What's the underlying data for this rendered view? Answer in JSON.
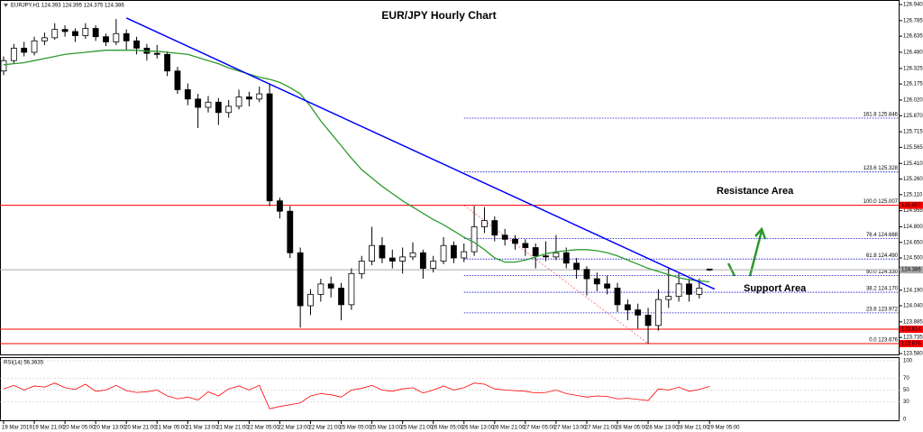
{
  "chart_data": {
    "type": "candlestick",
    "title": "EUR/JPY Hourly Chart",
    "header": "EURJPY,H1 124.393 124.395 124.375 124.386",
    "categories": [
      "19 Mar 2019",
      null,
      null,
      "19 Mar 21:00",
      null,
      null,
      "20 Mar 05:00",
      null,
      null,
      "20 Mar 13:00",
      null,
      null,
      "20 Mar 21:00",
      null,
      null,
      "21 Mar 05:00",
      null,
      null,
      "21 Mar 13:00",
      null,
      null,
      "21 Mar 21:00",
      null,
      null,
      "22 Mar 05:00",
      null,
      null,
      "22 Mar 13:00",
      null,
      null,
      "22 Mar 21:00",
      null,
      null,
      "25 Mar 05:00",
      null,
      null,
      "25 Mar 13:00",
      null,
      null,
      "25 Mar 21:00",
      null,
      null,
      "26 Mar 05:00",
      null,
      null,
      "26 Mar 13:00",
      null,
      null,
      "26 Mar 21:00",
      null,
      null,
      "27 Mar 05:00",
      null,
      null,
      "27 Mar 13:00",
      null,
      null,
      "27 Mar 21:00",
      null,
      null,
      "28 Mar 05:00",
      null,
      null,
      "28 Mar 13:00",
      null,
      null,
      "28 Mar 21:00",
      null,
      null,
      "29 Mar 05:00"
    ],
    "open": [
      126.3,
      126.4,
      126.52,
      126.48,
      126.59,
      126.62,
      126.7,
      126.68,
      126.64,
      126.71,
      126.63,
      126.58,
      126.66,
      126.59,
      126.52,
      126.47,
      126.46,
      126.3,
      126.12,
      126.03,
      125.95,
      126.0,
      125.9,
      125.96,
      126.05,
      126.03,
      126.08,
      125.05,
      124.95,
      124.55,
      124.04,
      124.15,
      124.25,
      124.21,
      124.05,
      124.35,
      124.47,
      124.62,
      124.5,
      124.47,
      124.51,
      124.55,
      124.4,
      124.47,
      124.62,
      124.5,
      124.56,
      124.8,
      124.86,
      124.72,
      124.68,
      124.64,
      124.6,
      124.52,
      124.51,
      124.55,
      124.45,
      124.39,
      124.3,
      124.25,
      124.21,
      124.05,
      124.0,
      123.95,
      123.85,
      124.1,
      124.13,
      124.25,
      124.15,
      124.393
    ],
    "high": [
      126.44,
      126.56,
      126.58,
      126.63,
      126.67,
      126.76,
      126.74,
      126.71,
      126.76,
      126.74,
      126.66,
      126.8,
      126.7,
      126.63,
      126.56,
      126.55,
      126.49,
      126.34,
      126.18,
      126.08,
      126.06,
      126.04,
      126.02,
      126.12,
      126.1,
      126.15,
      126.18,
      125.08,
      125.0,
      124.6,
      124.2,
      124.3,
      124.32,
      124.26,
      124.4,
      124.52,
      124.8,
      124.7,
      124.58,
      124.6,
      124.65,
      124.58,
      124.52,
      124.7,
      124.66,
      124.64,
      125.0,
      124.99,
      124.9,
      124.78,
      124.72,
      124.68,
      124.64,
      124.66,
      124.72,
      124.6,
      124.5,
      124.42,
      124.36,
      124.33,
      124.26,
      124.1,
      124.06,
      124.02,
      124.2,
      124.4,
      124.35,
      124.3,
      124.3,
      124.395
    ],
    "low": [
      126.26,
      126.37,
      126.44,
      126.45,
      126.55,
      126.6,
      126.63,
      126.58,
      126.61,
      126.59,
      126.54,
      126.55,
      126.5,
      126.46,
      126.4,
      126.42,
      126.25,
      126.08,
      125.97,
      125.75,
      125.9,
      125.78,
      125.85,
      125.93,
      125.96,
      126.0,
      125.0,
      124.88,
      124.5,
      123.83,
      123.95,
      124.08,
      124.12,
      123.9,
      124.0,
      124.3,
      124.43,
      124.45,
      124.4,
      124.35,
      124.48,
      124.3,
      124.36,
      124.44,
      124.45,
      124.46,
      124.52,
      124.74,
      124.66,
      124.62,
      124.58,
      124.52,
      124.4,
      124.47,
      124.48,
      124.4,
      124.3,
      124.14,
      124.18,
      124.15,
      123.98,
      123.9,
      123.82,
      123.676,
      123.8,
      124.02,
      124.08,
      124.08,
      124.11,
      124.375
    ],
    "close": [
      126.4,
      126.52,
      126.48,
      126.59,
      126.62,
      126.7,
      126.68,
      126.64,
      126.71,
      126.63,
      126.58,
      126.66,
      126.59,
      126.52,
      126.47,
      126.46,
      126.3,
      126.12,
      126.03,
      125.95,
      126.0,
      125.9,
      125.96,
      126.05,
      126.03,
      126.08,
      125.05,
      124.95,
      124.55,
      124.04,
      124.15,
      124.25,
      124.21,
      124.05,
      124.35,
      124.47,
      124.62,
      124.5,
      124.47,
      124.51,
      124.55,
      124.4,
      124.47,
      124.62,
      124.5,
      124.56,
      124.8,
      124.86,
      124.72,
      124.68,
      124.64,
      124.6,
      124.52,
      124.51,
      124.55,
      124.45,
      124.39,
      124.3,
      124.25,
      124.21,
      124.05,
      124.0,
      123.95,
      123.85,
      124.1,
      124.13,
      124.25,
      124.15,
      124.21,
      124.386
    ],
    "colors": {
      "up": "#ffffff",
      "down": "#000000",
      "outline": "#000000"
    },
    "ylim": [
      123.58,
      126.94
    ],
    "yticks": [
      {
        "value": 126.94,
        "label": "126.940"
      },
      {
        "value": 126.785,
        "label": "126.785"
      },
      {
        "value": 126.635,
        "label": "126.635"
      },
      {
        "value": 126.48,
        "label": "126.480"
      },
      {
        "value": 126.325,
        "label": "126.325"
      },
      {
        "value": 126.175,
        "label": "126.175"
      },
      {
        "value": 126.02,
        "label": "126.020"
      },
      {
        "value": 125.87,
        "label": "125.870"
      },
      {
        "value": 125.715,
        "label": "125.715"
      },
      {
        "value": 125.565,
        "label": "125.565"
      },
      {
        "value": 125.41,
        "label": "125.410"
      },
      {
        "value": 125.26,
        "label": "125.260"
      },
      {
        "value": 125.11,
        "label": "125.110"
      },
      {
        "value": 124.955,
        "label": "124.955"
      },
      {
        "value": 124.8,
        "label": "124.800"
      },
      {
        "value": 124.65,
        "label": "124.650"
      },
      {
        "value": 124.5,
        "label": "124.500"
      },
      {
        "value": 124.19,
        "label": "124.190"
      },
      {
        "value": 124.04,
        "label": "124.040"
      },
      {
        "value": 123.885,
        "label": "123.885"
      },
      {
        "value": 123.735,
        "label": "123.735"
      },
      {
        "value": 123.58,
        "label": "123.580"
      }
    ],
    "ma": {
      "color": "#2e9a2e",
      "values": [
        126.36,
        126.37,
        126.38,
        126.4,
        126.42,
        126.44,
        126.46,
        126.47,
        126.48,
        126.49,
        126.5,
        126.5,
        126.5,
        126.5,
        126.49,
        126.49,
        126.48,
        126.47,
        126.46,
        126.43,
        126.4,
        126.37,
        126.33,
        126.3,
        126.27,
        126.24,
        126.22,
        126.19,
        126.14,
        126.08,
        125.96,
        125.82,
        125.7,
        125.58,
        125.46,
        125.35,
        125.27,
        125.19,
        125.12,
        125.05,
        124.99,
        124.93,
        124.87,
        124.82,
        124.76,
        124.7,
        124.65,
        124.58,
        124.5,
        124.46,
        124.46,
        124.48,
        124.51,
        124.54,
        124.56,
        124.57,
        124.58,
        124.58,
        124.57,
        124.55,
        124.52,
        124.48,
        124.44,
        124.4,
        124.37,
        124.34,
        124.31,
        124.29,
        124.28,
        124.27
      ]
    },
    "trendline": {
      "color": "#0000ff",
      "x": [
        12,
        69.5
      ],
      "y": [
        126.81,
        124.2
      ]
    },
    "fib": {
      "color": "#0000cc",
      "start": 45,
      "levels": [
        {
          "value": 125.846,
          "label": "161.8 125.846"
        },
        {
          "value": 125.328,
          "label": "123.6 125.328"
        },
        {
          "value": 125.007,
          "label": "100.0 125.007"
        },
        {
          "value": 124.688,
          "label": "76.4 124.688"
        },
        {
          "value": 124.49,
          "label": "61.8 124.490"
        },
        {
          "value": 124.33,
          "label": "50.0 124.330"
        },
        {
          "value": 124.17,
          "label": "38.2 124.170"
        },
        {
          "value": 123.972,
          "label": "23.6 123.972"
        },
        {
          "value": 123.676,
          "label": "0.0 123.676"
        }
      ]
    },
    "fib_anchor": {
      "color": "#ff6666",
      "x": [
        45,
        63
      ],
      "y": [
        125.007,
        123.676
      ]
    },
    "hlines": [
      {
        "value": 125.007,
        "color": "#ff0000"
      },
      {
        "value": 124.386,
        "color": "#aaaaaa"
      },
      {
        "value": 123.814,
        "color": "#ff0000"
      },
      {
        "value": 123.676,
        "color": "#ff0000"
      }
    ],
    "annotations": [
      {
        "text": "Resistance Area",
        "color": "#e53935"
      },
      {
        "text": "Support Area",
        "color": "#2e9a2e"
      }
    ],
    "rsi": {
      "title": "RSI(14) 56.3635",
      "color": "#ff0000",
      "ylim": [
        0,
        100
      ],
      "yticks": [
        100,
        70,
        50,
        30,
        0
      ],
      "values": [
        52,
        58,
        50,
        57,
        55,
        62,
        54,
        51,
        60,
        48,
        50,
        58,
        49,
        46,
        47,
        50,
        40,
        35,
        38,
        33,
        47,
        40,
        52,
        57,
        50,
        58,
        18,
        22,
        25,
        28,
        40,
        44,
        42,
        38,
        50,
        53,
        58,
        50,
        48,
        52,
        54,
        45,
        50,
        57,
        50,
        54,
        62,
        60,
        52,
        50,
        49,
        48,
        45,
        46,
        50,
        44,
        41,
        38,
        40,
        39,
        35,
        36,
        34,
        32,
        52,
        50,
        55,
        48,
        51,
        56.3635
      ]
    }
  }
}
